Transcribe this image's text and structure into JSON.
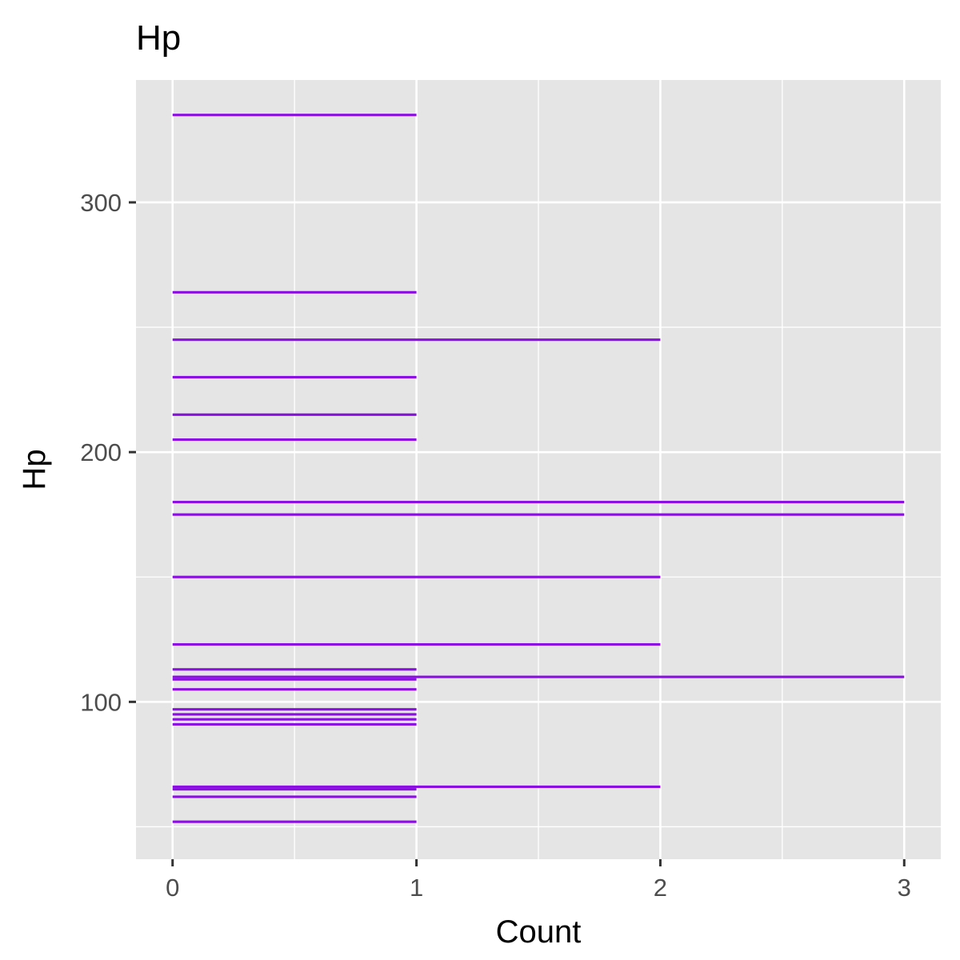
{
  "chart_data": {
    "type": "bar",
    "orientation": "horizontal",
    "title": "Hp",
    "xlabel": "Count",
    "ylabel": "Hp",
    "xlim": [
      -0.15,
      3.15
    ],
    "ylim": [
      37,
      349
    ],
    "x_ticks": [
      0,
      1,
      2,
      3
    ],
    "y_ticks": [
      100,
      200,
      300
    ],
    "grid": true,
    "legend": "none",
    "bar_color": "#8A0FE0",
    "panel_color": "#E5E5E5",
    "points": [
      {
        "hp": 52,
        "count": 1
      },
      {
        "hp": 62,
        "count": 1
      },
      {
        "hp": 65,
        "count": 1
      },
      {
        "hp": 66,
        "count": 2
      },
      {
        "hp": 91,
        "count": 1
      },
      {
        "hp": 93,
        "count": 1
      },
      {
        "hp": 95,
        "count": 1
      },
      {
        "hp": 97,
        "count": 1
      },
      {
        "hp": 105,
        "count": 1
      },
      {
        "hp": 109,
        "count": 1
      },
      {
        "hp": 110,
        "count": 3
      },
      {
        "hp": 113,
        "count": 1
      },
      {
        "hp": 123,
        "count": 2
      },
      {
        "hp": 150,
        "count": 2
      },
      {
        "hp": 175,
        "count": 3
      },
      {
        "hp": 180,
        "count": 3
      },
      {
        "hp": 205,
        "count": 1
      },
      {
        "hp": 215,
        "count": 1
      },
      {
        "hp": 230,
        "count": 1
      },
      {
        "hp": 245,
        "count": 2
      },
      {
        "hp": 264,
        "count": 1
      },
      {
        "hp": 335,
        "count": 1
      }
    ]
  }
}
